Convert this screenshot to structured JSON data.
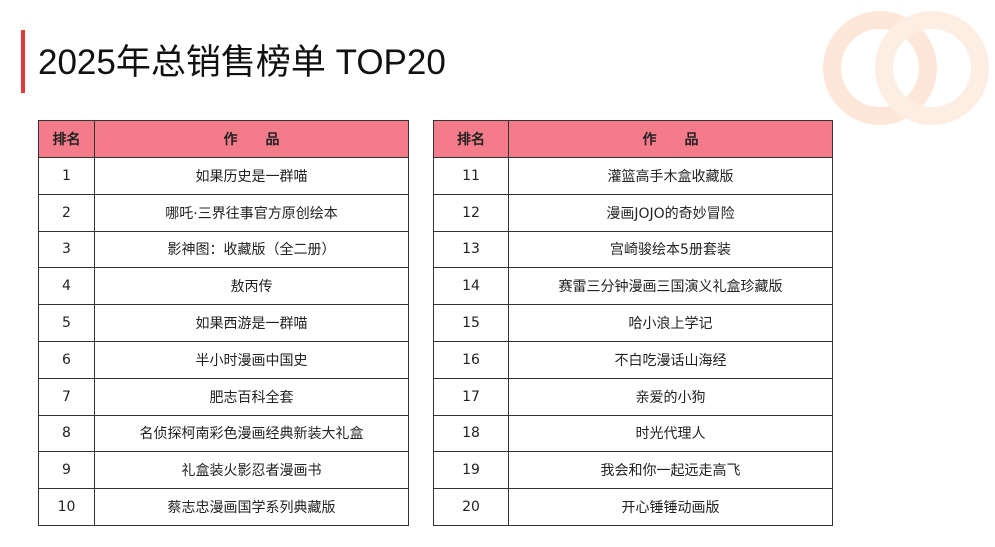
{
  "title": "2025年总销售榜单 TOP20",
  "tables": [
    {
      "header": [
        "排名",
        "作　　品"
      ],
      "rows": [
        [
          1,
          "如果历史是一群喵"
        ],
        [
          2,
          "哪吒·三界往事官方原创绘本"
        ],
        [
          3,
          "影神图：收藏版（全二册）"
        ],
        [
          4,
          "敖丙传"
        ],
        [
          5,
          "如果西游是一群喵"
        ],
        [
          6,
          "半小时漫画中国史"
        ],
        [
          7,
          "肥志百科全套"
        ],
        [
          8,
          "名侦探柯南彩色漫画经典新装大礼盒"
        ],
        [
          9,
          "礼盒装火影忍者漫画书"
        ],
        [
          10,
          "蔡志忠漫画国学系列典藏版"
        ]
      ]
    },
    {
      "header": [
        "排名",
        "作　　品"
      ],
      "rows": [
        [
          11,
          "灌篮高手木盒收藏版"
        ],
        [
          12,
          "漫画JOJO的奇妙冒险"
        ],
        [
          13,
          "宫崎骏绘本5册套装"
        ],
        [
          14,
          "赛雷三分钟漫画三国演义礼盒珍藏版"
        ],
        [
          15,
          "哈小浪上学记"
        ],
        [
          16,
          "不白吃漫话山海经"
        ],
        [
          17,
          "亲爱的小狗"
        ],
        [
          18,
          "时光代理人"
        ],
        [
          19,
          "我会和你一起远走高飞"
        ],
        [
          20,
          "开心锤锤动画版"
        ]
      ]
    }
  ]
}
